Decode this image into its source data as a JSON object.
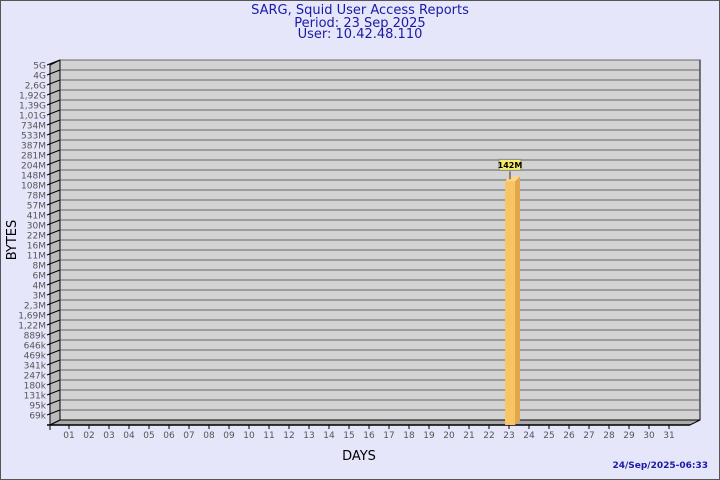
{
  "header": {
    "title": "SARG, Squid User Access Reports",
    "period": "Period: 23 Sep 2025",
    "user": "User: 10.42.48.110"
  },
  "timestamp": "24/Sep/2025-06:33",
  "chart_data": {
    "type": "bar",
    "xlabel": "DAYS",
    "ylabel": "BYTES",
    "y_scale": "log",
    "grid": true,
    "y_tick_labels": [
      "5G",
      "4G",
      "2,6G",
      "1,92G",
      "1,39G",
      "1,01G",
      "734M",
      "533M",
      "387M",
      "281M",
      "204M",
      "148M",
      "108M",
      "78M",
      "57M",
      "41M",
      "30M",
      "22M",
      "16M",
      "11M",
      "8M",
      "6M",
      "4M",
      "3M",
      "2,3M",
      "1,69M",
      "1,22M",
      "889k",
      "646k",
      "469k",
      "341k",
      "247k",
      "180k",
      "131k",
      "95k",
      "69k"
    ],
    "categories": [
      "01",
      "02",
      "03",
      "04",
      "05",
      "06",
      "07",
      "08",
      "09",
      "10",
      "11",
      "12",
      "13",
      "14",
      "15",
      "16",
      "17",
      "18",
      "19",
      "20",
      "21",
      "22",
      "23",
      "24",
      "25",
      "26",
      "27",
      "28",
      "29",
      "30",
      "31"
    ],
    "values": [
      0,
      0,
      0,
      0,
      0,
      0,
      0,
      0,
      0,
      0,
      0,
      0,
      0,
      0,
      0,
      0,
      0,
      0,
      0,
      0,
      0,
      0,
      142000000,
      0,
      0,
      0,
      0,
      0,
      0,
      0,
      0
    ],
    "data_labels": {
      "23": "142M"
    },
    "colors": {
      "bar": "#f9c466",
      "bar_side": "#e0a84a",
      "plot_bg": "#d3d3d3",
      "label_bg": "#f5ec6a"
    }
  }
}
